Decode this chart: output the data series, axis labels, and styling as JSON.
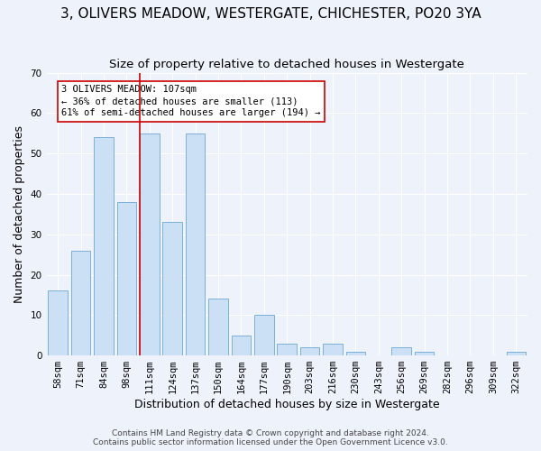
{
  "title": "3, OLIVERS MEADOW, WESTERGATE, CHICHESTER, PO20 3YA",
  "subtitle": "Size of property relative to detached houses in Westergate",
  "xlabel": "Distribution of detached houses by size in Westergate",
  "ylabel": "Number of detached properties",
  "bar_labels": [
    "58sqm",
    "71sqm",
    "84sqm",
    "98sqm",
    "111sqm",
    "124sqm",
    "137sqm",
    "150sqm",
    "164sqm",
    "177sqm",
    "190sqm",
    "203sqm",
    "216sqm",
    "230sqm",
    "243sqm",
    "256sqm",
    "269sqm",
    "282sqm",
    "296sqm",
    "309sqm",
    "322sqm"
  ],
  "bar_values": [
    16,
    26,
    54,
    38,
    55,
    33,
    55,
    14,
    5,
    10,
    3,
    2,
    3,
    1,
    0,
    2,
    1,
    0,
    0,
    0,
    1
  ],
  "bar_color": "#cce0f5",
  "bar_edge_color": "#7ab0d8",
  "ylim": [
    0,
    70
  ],
  "yticks": [
    0,
    10,
    20,
    30,
    40,
    50,
    60,
    70
  ],
  "property_line_color": "#cc0000",
  "annotation_text": "3 OLIVERS MEADOW: 107sqm\n← 36% of detached houses are smaller (113)\n61% of semi-detached houses are larger (194) →",
  "annotation_box_color": "#ffffff",
  "annotation_box_edge": "#cc0000",
  "footer_line1": "Contains HM Land Registry data © Crown copyright and database right 2024.",
  "footer_line2": "Contains public sector information licensed under the Open Government Licence v3.0.",
  "background_color": "#eef3fb",
  "grid_color": "#ffffff",
  "title_fontsize": 11,
  "subtitle_fontsize": 9.5,
  "axis_label_fontsize": 9,
  "tick_fontsize": 7.5,
  "annotation_fontsize": 7.5,
  "footer_fontsize": 6.5
}
